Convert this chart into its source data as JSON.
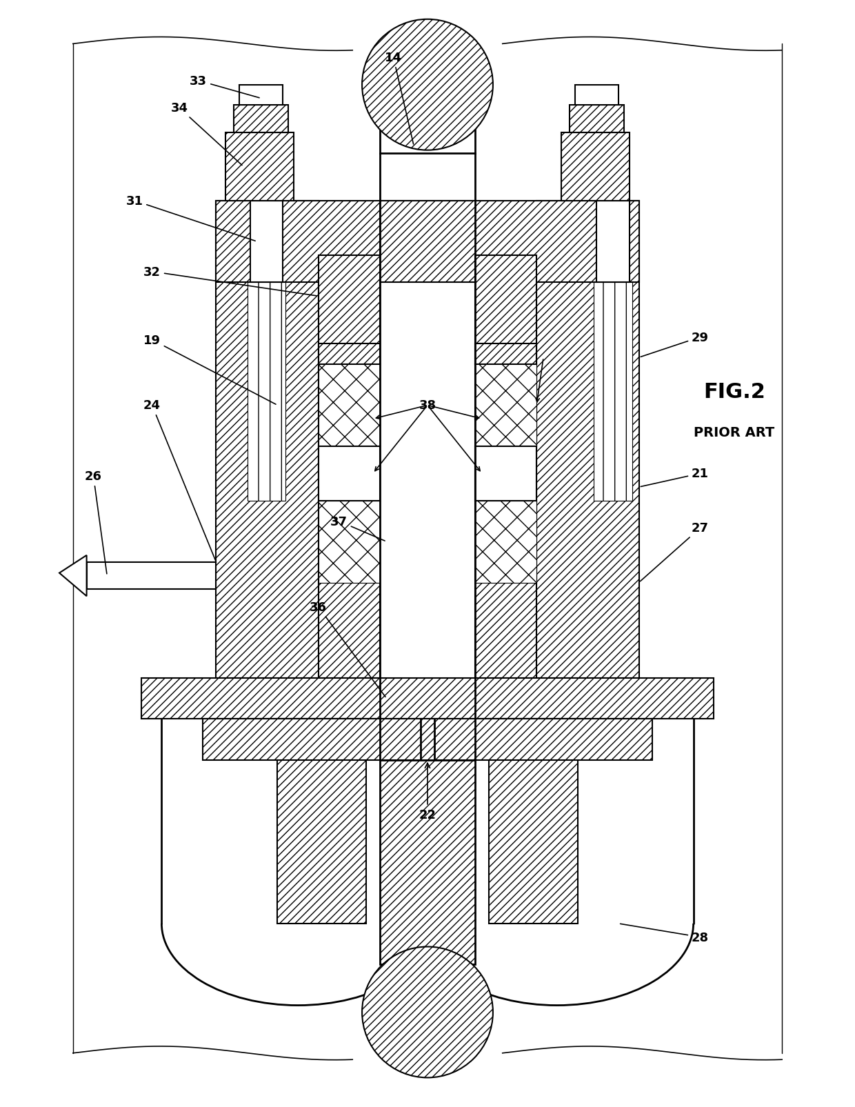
{
  "bg": "#ffffff",
  "lw": 1.5,
  "lw2": 2.0,
  "fs": 13,
  "fig_w": 12.4,
  "fig_h": 16.06
}
